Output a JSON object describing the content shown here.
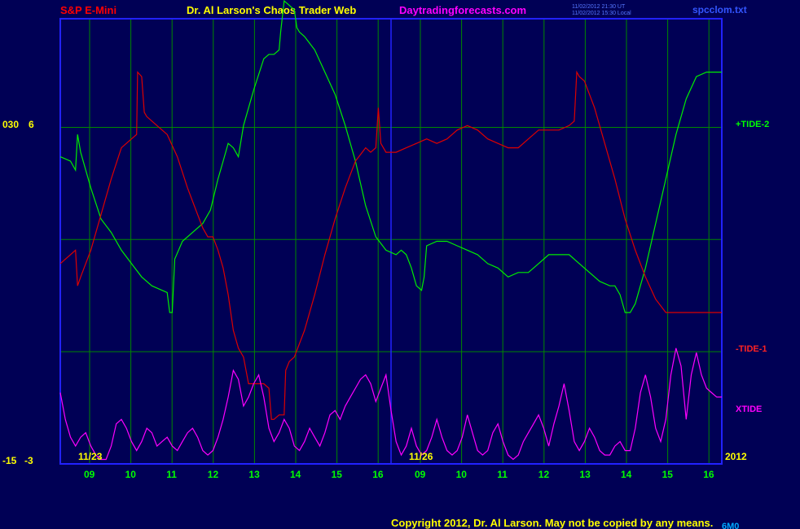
{
  "header": {
    "symbol": "S&P E-Mini",
    "title": "Dr. Al Larson's Chaos Trader Web",
    "site": "Daytradingforecasts.com",
    "timestamp_line1": "11/02/2012 21:30 UT",
    "timestamp_line2": "11/02/2012 15:30 Local",
    "file": "spcclom.txt"
  },
  "footer": {
    "copyright": "Copyright 2012, Dr. Al Larson. May not be copied by any means.",
    "corner_tag": "6M0"
  },
  "colors": {
    "background": "#000055",
    "frame": "#2222ff",
    "grid": "#008800",
    "tide2": "#00ee00",
    "tide1": "#dd0000",
    "xtide": "#ff00ff",
    "label_yellow": "#ffff00",
    "label_green": "#00ff00",
    "header_red": "#ff0000",
    "header_yellow": "#ffff00",
    "header_magenta": "#ff00ff",
    "header_blue": "#3355ff"
  },
  "chart_data": {
    "type": "line",
    "left_axis": {
      "top_label_a": "030",
      "top_label_b": "6",
      "bottom_label_a": "-15",
      "bottom_label_b": "-3"
    },
    "date_markers": [
      "11/23",
      "11/26"
    ],
    "year_label": "2012",
    "x_ticks": [
      "09",
      "10",
      "11",
      "12",
      "13",
      "14",
      "15",
      "16",
      "09",
      "10",
      "11",
      "12",
      "13",
      "14",
      "15",
      "16"
    ],
    "ylim": [
      0,
      100
    ],
    "series": [
      {
        "name": "+TIDE-2",
        "color": "#00ee00",
        "points": [
          [
            0,
            69
          ],
          [
            2,
            68
          ],
          [
            3,
            66
          ],
          [
            3.4,
            74
          ],
          [
            4,
            70
          ],
          [
            6,
            62
          ],
          [
            8,
            55
          ],
          [
            10,
            52
          ],
          [
            12,
            48
          ],
          [
            14,
            45
          ],
          [
            16,
            42
          ],
          [
            18,
            40
          ],
          [
            20,
            39
          ],
          [
            21,
            38.5
          ],
          [
            21.5,
            34
          ],
          [
            22,
            34
          ],
          [
            22.5,
            46
          ],
          [
            24,
            50
          ],
          [
            26,
            52
          ],
          [
            28,
            54
          ],
          [
            29.5,
            57
          ],
          [
            31,
            64
          ],
          [
            32,
            68
          ],
          [
            33,
            72
          ],
          [
            34,
            71
          ],
          [
            35,
            69
          ],
          [
            36,
            76
          ],
          [
            38,
            84
          ],
          [
            40,
            91
          ],
          [
            41,
            92
          ],
          [
            42,
            92
          ],
          [
            43,
            93
          ],
          [
            43.3,
            97
          ],
          [
            44,
            104
          ],
          [
            45,
            103
          ],
          [
            46,
            102
          ],
          [
            46.5,
            98
          ],
          [
            47,
            97
          ],
          [
            48,
            96
          ],
          [
            50,
            93
          ],
          [
            52,
            88
          ],
          [
            54,
            83
          ],
          [
            56,
            76
          ],
          [
            58,
            68
          ],
          [
            60,
            58
          ],
          [
            62,
            51
          ],
          [
            64,
            48
          ],
          [
            66,
            47
          ],
          [
            67,
            48
          ],
          [
            68,
            47
          ],
          [
            69,
            44
          ],
          [
            70,
            40
          ],
          [
            71,
            39
          ],
          [
            71.5,
            42
          ],
          [
            72,
            49
          ],
          [
            74,
            50
          ],
          [
            76,
            50
          ],
          [
            78,
            49
          ],
          [
            80,
            48
          ],
          [
            82,
            47
          ],
          [
            84,
            45
          ],
          [
            86,
            44
          ],
          [
            88,
            42
          ],
          [
            90,
            43
          ],
          [
            92,
            43
          ],
          [
            94,
            45
          ],
          [
            96,
            47
          ],
          [
            98,
            47
          ],
          [
            100,
            47
          ],
          [
            102,
            45
          ],
          [
            104,
            43
          ],
          [
            106,
            41
          ],
          [
            108,
            40
          ],
          [
            109,
            40
          ],
          [
            110,
            38
          ],
          [
            111,
            34
          ],
          [
            112,
            34
          ],
          [
            113,
            36
          ],
          [
            115,
            44
          ],
          [
            117,
            54
          ],
          [
            119,
            64
          ],
          [
            121,
            74
          ],
          [
            123,
            82
          ],
          [
            125,
            87
          ],
          [
            127,
            88
          ],
          [
            129,
            88
          ],
          [
            130,
            88
          ]
        ]
      },
      {
        "name": "-TIDE-1",
        "color": "#dd0000",
        "points": [
          [
            0,
            45
          ],
          [
            2,
            47
          ],
          [
            3,
            48
          ],
          [
            3.4,
            40
          ],
          [
            4,
            42
          ],
          [
            6,
            48
          ],
          [
            8,
            56
          ],
          [
            10,
            64
          ],
          [
            12,
            71
          ],
          [
            14,
            73
          ],
          [
            15,
            74
          ],
          [
            15.2,
            88
          ],
          [
            16,
            87
          ],
          [
            16.5,
            79
          ],
          [
            17,
            78
          ],
          [
            19,
            76
          ],
          [
            21,
            74
          ],
          [
            23,
            69
          ],
          [
            25,
            62
          ],
          [
            27,
            56
          ],
          [
            28,
            53
          ],
          [
            29,
            51
          ],
          [
            30,
            51
          ],
          [
            31,
            48
          ],
          [
            32,
            44
          ],
          [
            33,
            38
          ],
          [
            34,
            30
          ],
          [
            35,
            26
          ],
          [
            36,
            24
          ],
          [
            37,
            18
          ],
          [
            38,
            18
          ],
          [
            39,
            18
          ],
          [
            40,
            18
          ],
          [
            41,
            17
          ],
          [
            41.5,
            10
          ],
          [
            42,
            10
          ],
          [
            43,
            11
          ],
          [
            44,
            11
          ],
          [
            44.3,
            21
          ],
          [
            45,
            23
          ],
          [
            46,
            24
          ],
          [
            48,
            30
          ],
          [
            50,
            38
          ],
          [
            52,
            47
          ],
          [
            54,
            55
          ],
          [
            56,
            62
          ],
          [
            58,
            68
          ],
          [
            60,
            71
          ],
          [
            61,
            70
          ],
          [
            62,
            71
          ],
          [
            62.5,
            80
          ],
          [
            63,
            72
          ],
          [
            64,
            70
          ],
          [
            66,
            70
          ],
          [
            68,
            71
          ],
          [
            70,
            72
          ],
          [
            72,
            73
          ],
          [
            74,
            72
          ],
          [
            76,
            73
          ],
          [
            78,
            75
          ],
          [
            80,
            76
          ],
          [
            82,
            75
          ],
          [
            84,
            73
          ],
          [
            86,
            72
          ],
          [
            88,
            71
          ],
          [
            90,
            71
          ],
          [
            92,
            73
          ],
          [
            94,
            75
          ],
          [
            96,
            75
          ],
          [
            98,
            75
          ],
          [
            100,
            76
          ],
          [
            101,
            77
          ],
          [
            101.5,
            88
          ],
          [
            102,
            87
          ],
          [
            103,
            86
          ],
          [
            105,
            80
          ],
          [
            107,
            72
          ],
          [
            109,
            64
          ],
          [
            111,
            55
          ],
          [
            113,
            48
          ],
          [
            115,
            42
          ],
          [
            117,
            37
          ],
          [
            119,
            34
          ],
          [
            121,
            34
          ],
          [
            123,
            34
          ],
          [
            125,
            34
          ],
          [
            127,
            34
          ],
          [
            129,
            34
          ],
          [
            130,
            34
          ]
        ]
      },
      {
        "name": "XTIDE",
        "color": "#ff00ff",
        "points": [
          [
            0,
            16
          ],
          [
            1,
            10
          ],
          [
            2,
            6
          ],
          [
            3,
            4
          ],
          [
            4,
            6
          ],
          [
            5,
            7
          ],
          [
            6,
            4
          ],
          [
            7,
            2
          ],
          [
            8,
            1
          ],
          [
            9,
            1
          ],
          [
            10,
            4
          ],
          [
            11,
            9
          ],
          [
            12,
            10
          ],
          [
            13,
            8
          ],
          [
            14,
            5
          ],
          [
            15,
            3
          ],
          [
            16,
            5
          ],
          [
            17,
            8
          ],
          [
            18,
            7
          ],
          [
            19,
            4
          ],
          [
            20,
            5
          ],
          [
            21,
            6
          ],
          [
            22,
            4
          ],
          [
            23,
            3
          ],
          [
            24,
            5
          ],
          [
            25,
            7
          ],
          [
            26,
            8
          ],
          [
            27,
            6
          ],
          [
            28,
            3
          ],
          [
            29,
            2
          ],
          [
            30,
            3
          ],
          [
            31,
            6
          ],
          [
            32,
            10
          ],
          [
            33,
            15
          ],
          [
            34,
            21
          ],
          [
            35,
            19
          ],
          [
            36,
            13
          ],
          [
            37,
            15
          ],
          [
            38,
            18
          ],
          [
            39,
            20
          ],
          [
            40,
            15
          ],
          [
            41,
            8
          ],
          [
            42,
            5
          ],
          [
            43,
            7
          ],
          [
            44,
            10
          ],
          [
            45,
            8
          ],
          [
            46,
            4
          ],
          [
            47,
            3
          ],
          [
            48,
            5
          ],
          [
            49,
            8
          ],
          [
            50,
            6
          ],
          [
            51,
            4
          ],
          [
            52,
            7
          ],
          [
            53,
            11
          ],
          [
            54,
            12
          ],
          [
            55,
            10
          ],
          [
            56,
            13
          ],
          [
            57,
            15
          ],
          [
            58,
            17
          ],
          [
            59,
            19
          ],
          [
            60,
            20
          ],
          [
            61,
            18
          ],
          [
            62,
            14
          ],
          [
            63,
            17
          ],
          [
            64,
            20
          ],
          [
            65,
            12
          ],
          [
            66,
            5
          ],
          [
            67,
            2
          ],
          [
            68,
            4
          ],
          [
            69,
            8
          ],
          [
            70,
            4
          ],
          [
            71,
            2
          ],
          [
            72,
            3
          ],
          [
            73,
            6
          ],
          [
            74,
            10
          ],
          [
            75,
            6
          ],
          [
            76,
            3
          ],
          [
            77,
            2
          ],
          [
            78,
            3
          ],
          [
            79,
            6
          ],
          [
            80,
            11
          ],
          [
            81,
            7
          ],
          [
            82,
            3
          ],
          [
            83,
            2
          ],
          [
            84,
            3
          ],
          [
            85,
            7
          ],
          [
            86,
            9
          ],
          [
            87,
            5
          ],
          [
            88,
            2
          ],
          [
            89,
            1
          ],
          [
            90,
            2
          ],
          [
            91,
            5
          ],
          [
            92,
            7
          ],
          [
            93,
            9
          ],
          [
            94,
            11
          ],
          [
            95,
            8
          ],
          [
            96,
            4
          ],
          [
            97,
            9
          ],
          [
            98,
            13
          ],
          [
            99,
            18
          ],
          [
            100,
            12
          ],
          [
            101,
            5
          ],
          [
            102,
            3
          ],
          [
            103,
            5
          ],
          [
            104,
            8
          ],
          [
            105,
            6
          ],
          [
            106,
            3
          ],
          [
            107,
            2
          ],
          [
            108,
            2
          ],
          [
            109,
            4
          ],
          [
            110,
            5
          ],
          [
            111,
            3
          ],
          [
            112,
            3
          ],
          [
            113,
            8
          ],
          [
            114,
            16
          ],
          [
            115,
            20
          ],
          [
            116,
            15
          ],
          [
            117,
            8
          ],
          [
            118,
            5
          ],
          [
            119,
            10
          ],
          [
            120,
            20
          ],
          [
            121,
            26
          ],
          [
            122,
            22
          ],
          [
            123,
            10
          ],
          [
            124,
            20
          ],
          [
            125,
            25
          ],
          [
            126,
            20
          ],
          [
            127,
            17
          ],
          [
            128,
            16
          ],
          [
            129,
            15
          ],
          [
            130,
            15
          ]
        ]
      }
    ],
    "label_colors": {
      "+TIDE-2": "#00ff00",
      "-TIDE-1": "#ff2222",
      "XTIDE": "#ff00ff"
    }
  }
}
